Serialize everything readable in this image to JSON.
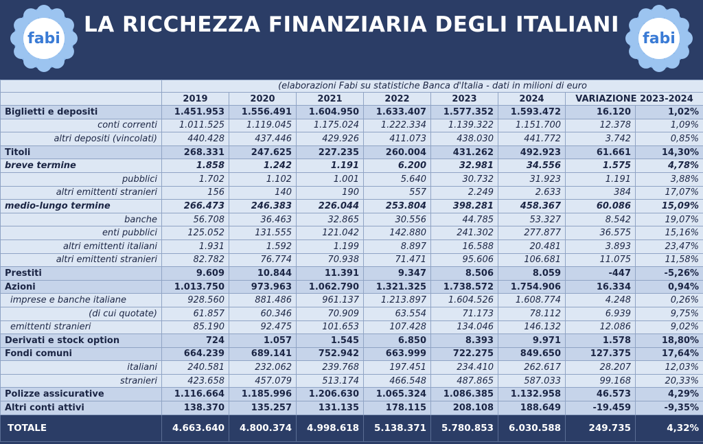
{
  "header": {
    "title": "LA RICCHEZZA FINANZIARIA DEGLI ITALIANI",
    "logo_text": "fabi"
  },
  "table": {
    "note": "(elaborazioni Fabi su statistiche Banca d'Italia - dati in milioni di euro",
    "columns": [
      "2019",
      "2020",
      "2021",
      "2022",
      "2023",
      "2024"
    ],
    "variation_header": "VARIAZIONE 2023-2024",
    "rows": [
      {
        "label": "Biglietti e depositi",
        "values": [
          "1.451.953",
          "1.556.491",
          "1.604.950",
          "1.633.407",
          "1.577.352",
          "1.593.472",
          "16.120",
          "1,02%"
        ]
      },
      {
        "label": "conti correnti",
        "values": [
          "1.011.525",
          "1.119.045",
          "1.175.024",
          "1.222.334",
          "1.139.322",
          "1.151.700",
          "12.378",
          "1,09%"
        ]
      },
      {
        "label": "altri depositi (vincolati)",
        "values": [
          "440.428",
          "437.446",
          "429.926",
          "411.073",
          "438.030",
          "441.772",
          "3.742",
          "0,85%"
        ]
      },
      {
        "label": "Titoli",
        "values": [
          "268.331",
          "247.625",
          "227.235",
          "260.004",
          "431.262",
          "492.923",
          "61.661",
          "14,30%"
        ]
      },
      {
        "label": "breve termine",
        "values": [
          "1.858",
          "1.242",
          "1.191",
          "6.200",
          "32.981",
          "34.556",
          "1.575",
          "4,78%"
        ]
      },
      {
        "label": "pubblici",
        "values": [
          "1.702",
          "1.102",
          "1.001",
          "5.640",
          "30.732",
          "31.923",
          "1.191",
          "3,88%"
        ]
      },
      {
        "label": "altri emittenti stranieri",
        "values": [
          "156",
          "140",
          "190",
          "557",
          "2.249",
          "2.633",
          "384",
          "17,07%"
        ]
      },
      {
        "label": "medio-lungo termine",
        "values": [
          "266.473",
          "246.383",
          "226.044",
          "253.804",
          "398.281",
          "458.367",
          "60.086",
          "15,09%"
        ]
      },
      {
        "label": "banche",
        "values": [
          "56.708",
          "36.463",
          "32.865",
          "30.556",
          "44.785",
          "53.327",
          "8.542",
          "19,07%"
        ]
      },
      {
        "label": "enti pubblici",
        "values": [
          "125.052",
          "131.555",
          "121.042",
          "142.880",
          "241.302",
          "277.877",
          "36.575",
          "15,16%"
        ]
      },
      {
        "label": "altri emittenti italiani",
        "values": [
          "1.931",
          "1.592",
          "1.199",
          "8.897",
          "16.588",
          "20.481",
          "3.893",
          "23,47%"
        ]
      },
      {
        "label": "altri emittenti stranieri",
        "values": [
          "82.782",
          "76.774",
          "70.938",
          "71.471",
          "95.606",
          "106.681",
          "11.075",
          "11,58%"
        ]
      },
      {
        "label": "Prestiti",
        "values": [
          "9.609",
          "10.844",
          "11.391",
          "9.347",
          "8.506",
          "8.059",
          "-447",
          "-5,26%"
        ]
      },
      {
        "label": "Azioni",
        "values": [
          "1.013.750",
          "973.963",
          "1.062.790",
          "1.321.325",
          "1.738.572",
          "1.754.906",
          "16.334",
          "0,94%"
        ]
      },
      {
        "label": "imprese e banche italiane",
        "values": [
          "928.560",
          "881.486",
          "961.137",
          "1.213.897",
          "1.604.526",
          "1.608.774",
          "4.248",
          "0,26%"
        ]
      },
      {
        "label": "(di cui quotate)",
        "values": [
          "61.857",
          "60.346",
          "70.909",
          "63.554",
          "71.173",
          "78.112",
          "6.939",
          "9,75%"
        ]
      },
      {
        "label": "emittenti stranieri",
        "values": [
          "85.190",
          "92.475",
          "101.653",
          "107.428",
          "134.046",
          "146.132",
          "12.086",
          "9,02%"
        ]
      },
      {
        "label": "Derivati e stock option",
        "values": [
          "724",
          "1.057",
          "1.545",
          "6.850",
          "8.393",
          "9.971",
          "1.578",
          "18,80%"
        ]
      },
      {
        "label": "Fondi comuni",
        "values": [
          "664.239",
          "689.141",
          "752.942",
          "663.999",
          "722.275",
          "849.650",
          "127.375",
          "17,64%"
        ]
      },
      {
        "label": "italiani",
        "values": [
          "240.581",
          "232.062",
          "239.768",
          "197.451",
          "234.410",
          "262.617",
          "28.207",
          "12,03%"
        ]
      },
      {
        "label": "stranieri",
        "values": [
          "423.658",
          "457.079",
          "513.174",
          "466.548",
          "487.865",
          "587.033",
          "99.168",
          "20,33%"
        ]
      },
      {
        "label": "Polizze assicurative",
        "values": [
          "1.116.664",
          "1.185.996",
          "1.206.630",
          "1.065.324",
          "1.086.385",
          "1.132.958",
          "46.573",
          "4,29%"
        ]
      },
      {
        "label": "Altri conti attivi",
        "values": [
          "138.370",
          "135.257",
          "131.135",
          "178.115",
          "208.108",
          "188.649",
          "-19.459",
          "-9,35%"
        ]
      }
    ],
    "total": {
      "label": "TOTALE",
      "values": [
        "4.663.640",
        "4.800.374",
        "4.998.618",
        "5.138.371",
        "5.780.853",
        "6.030.588",
        "249.735",
        "4,32%"
      ]
    }
  }
}
